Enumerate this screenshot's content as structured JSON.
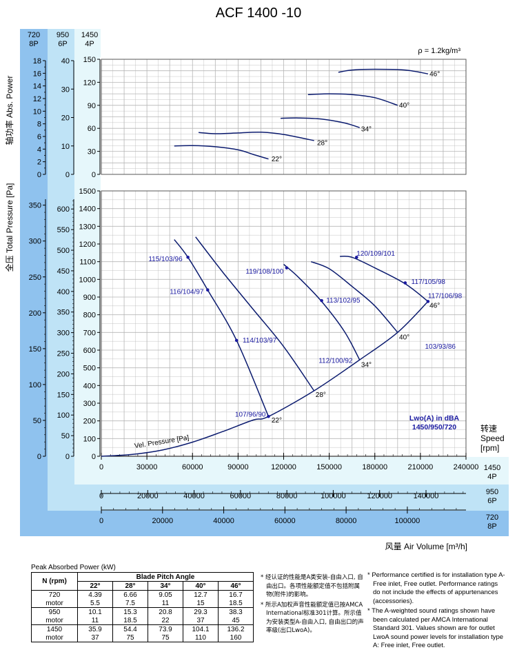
{
  "title": "ACF 1400 -10",
  "density_label": "ρ = 1.2kg/m³",
  "colors": {
    "band_dark": "#8fc2ee",
    "band_light": "#e6f7fb",
    "curve": "#0a1a6e",
    "grid": "#b5b5b5",
    "sound": "#1a1aa0"
  },
  "speed_headers": [
    {
      "rpm": "720",
      "pole": "8P"
    },
    {
      "rpm": "950",
      "pole": "6P"
    },
    {
      "rpm": "1450",
      "pole": "4P"
    }
  ],
  "labels": {
    "power_cn": "轴功率",
    "power_en": "Abs. Power",
    "pressure_cn": "全压",
    "pressure_en": "Total Pressure [Pa]",
    "speed_cn": "转速",
    "speed_en": "Speed",
    "speed_unit": "[rpm]",
    "airvol_cn": "风量",
    "airvol_en": "Air Volume [m³/h]",
    "vel_pressure": "Vel. Pressure [Pa]",
    "lwo_title": "Lwo(A) in dBA",
    "lwo_speeds": "1450/950/720"
  },
  "chart_data": {
    "type": "line",
    "title": "ACF 1400 -10",
    "power_axes": {
      "rpm1450": {
        "ylim": [
          0,
          150
        ],
        "ticks": [
          0,
          30,
          60,
          90,
          120,
          150
        ]
      },
      "rpm950": {
        "ylim": [
          0,
          40
        ],
        "ticks": [
          0,
          10,
          20,
          30,
          40
        ]
      },
      "rpm720": {
        "ylim": [
          0,
          18
        ],
        "ticks": [
          0,
          2,
          4,
          6,
          8,
          10,
          12,
          14,
          16,
          18
        ]
      }
    },
    "pressure_axes": {
      "rpm1450": {
        "ylim": [
          0,
          1500
        ],
        "ticks": [
          0,
          100,
          200,
          300,
          400,
          500,
          600,
          700,
          800,
          900,
          1000,
          1100,
          1200,
          1300,
          1400,
          1500
        ]
      },
      "rpm950": {
        "ylim": [
          0,
          650
        ],
        "ticks": [
          0,
          50,
          100,
          150,
          200,
          250,
          300,
          350,
          400,
          450,
          500,
          550,
          600
        ]
      },
      "rpm720": {
        "ylim": [
          0,
          375
        ],
        "ticks": [
          0,
          50,
          100,
          150,
          200,
          250,
          300,
          350
        ]
      }
    },
    "xaxes": {
      "rpm1450": {
        "xlim": [
          0,
          240000
        ],
        "ticks": [
          0,
          30000,
          60000,
          90000,
          120000,
          150000,
          180000,
          210000,
          240000
        ],
        "label": "1450",
        "pole": "4P"
      },
      "rpm950": {
        "xlim": [
          0,
          160000
        ],
        "ticks": [
          0,
          20000,
          40000,
          60000,
          80000,
          100000,
          120000,
          140000
        ],
        "label": "950",
        "pole": "6P"
      },
      "rpm720": {
        "xlim": [
          0,
          120000
        ],
        "ticks": [
          0,
          20000,
          40000,
          60000,
          80000,
          100000
        ],
        "label": "720",
        "pole": "8P"
      }
    },
    "pressure_curves": [
      {
        "name": "22°",
        "x": [
          48000,
          57000,
          70000,
          89000,
          110000
        ],
        "y": [
          1225,
          1125,
          940,
          655,
          225
        ],
        "label_xy": [
          112000,
          190
        ]
      },
      {
        "name": "28°",
        "x": [
          62000,
          80000,
          100000,
          120000,
          140000
        ],
        "y": [
          1240,
          1040,
          830,
          620,
          370
        ],
        "label_xy": [
          141000,
          335
        ]
      },
      {
        "name": "34°",
        "x": [
          120000,
          130000,
          145000,
          160000,
          170000
        ],
        "y": [
          1085,
          1010,
          875,
          705,
          545
        ],
        "label_xy": [
          171000,
          505
        ]
      },
      {
        "name": "40°",
        "x": [
          138000,
          150000,
          165000,
          180000,
          195000
        ],
        "y": [
          1100,
          1060,
          960,
          850,
          700
        ],
        "label_xy": [
          196000,
          660
        ]
      },
      {
        "name": "46°",
        "x": [
          157000,
          165000,
          180000,
          200000,
          215000
        ],
        "y": [
          1130,
          1125,
          1065,
          975,
          875
        ],
        "label_xy": [
          216000,
          840
        ]
      }
    ],
    "system_curve": {
      "name": "Vel. Pressure [Pa]",
      "x": [
        0,
        20000,
        40000,
        60000,
        80000,
        100000,
        110000,
        140000,
        170000,
        195000,
        215000
      ],
      "y": [
        0,
        10,
        35,
        80,
        140,
        205,
        225,
        370,
        545,
        700,
        875
      ]
    },
    "sound_points": [
      {
        "label": "115/103/96",
        "x": 57000,
        "y": 1125,
        "label_xy": [
          31000,
          1115
        ],
        "point": true
      },
      {
        "label": "116/104/97",
        "x": 70000,
        "y": 940,
        "label_xy": [
          45000,
          930
        ],
        "point": true
      },
      {
        "label": "114/103/97",
        "x": 89000,
        "y": 655,
        "label_xy": [
          93000,
          655
        ],
        "point": true
      },
      {
        "label": "107/96/90",
        "x": 110000,
        "y": 225,
        "label_xy": [
          88000,
          235
        ],
        "point": true
      },
      {
        "label": "119/108/100",
        "x": 122000,
        "y": 1065,
        "label_xy": [
          95000,
          1045
        ],
        "point": true
      },
      {
        "label": "113/102/95",
        "x": 145000,
        "y": 880,
        "label_xy": [
          148000,
          880
        ],
        "point": true
      },
      {
        "label": "112/100/92",
        "x": 170000,
        "y": 545,
        "label_xy": [
          143000,
          540
        ],
        "point": false
      },
      {
        "label": "120/109/101",
        "x": 168000,
        "y": 1125,
        "label_xy": [
          168000,
          1145
        ],
        "point": true
      },
      {
        "label": "117/105/98",
        "x": 200000,
        "y": 980,
        "label_xy": [
          204000,
          985
        ],
        "point": true
      },
      {
        "label": "117/106/98",
        "x": 215000,
        "y": 875,
        "label_xy": [
          215000,
          905
        ],
        "point": true
      },
      {
        "label": "103/93/86",
        "x": 210000,
        "y": 620,
        "label_xy": [
          213000,
          620
        ],
        "point": false
      }
    ],
    "power_curves": [
      {
        "name": "22°",
        "x": [
          48000,
          60000,
          75000,
          90000,
          100000,
          110000
        ],
        "y": [
          37,
          37.5,
          36,
          32,
          26,
          20
        ],
        "label_xy": [
          112000,
          17
        ]
      },
      {
        "name": "28°",
        "x": [
          64000,
          75000,
          90000,
          105000,
          120000,
          140000
        ],
        "y": [
          54.5,
          53,
          54,
          55,
          52,
          44
        ],
        "label_xy": [
          142000,
          38
        ]
      },
      {
        "name": "34°",
        "x": [
          118000,
          130000,
          145000,
          160000,
          170000
        ],
        "y": [
          73,
          73.5,
          72,
          67,
          61
        ],
        "label_xy": [
          171000,
          56
        ]
      },
      {
        "name": "40°",
        "x": [
          136000,
          150000,
          165000,
          180000,
          195000
        ],
        "y": [
          104,
          105,
          104,
          100,
          90
        ],
        "label_xy": [
          196000,
          87
        ]
      },
      {
        "name": "46°",
        "x": [
          156000,
          165000,
          180000,
          200000,
          215000
        ],
        "y": [
          133,
          136,
          137,
          136,
          131
        ],
        "label_xy": [
          216000,
          128
        ]
      }
    ]
  },
  "table": {
    "caption": "Peak Absorbed Power (kW)",
    "col_header_rpm": "N (rpm)",
    "col_header_group": "Blade Pitch Angle",
    "angles": [
      "22°",
      "28°",
      "34°",
      "40°",
      "46°"
    ],
    "rows": [
      {
        "rpm": "720",
        "values": [
          "4.39",
          "6.66",
          "9.05",
          "12.7",
          "16.7"
        ],
        "motor_label": "motor",
        "motor": [
          "5.5",
          "7.5",
          "11",
          "15",
          "18.5"
        ]
      },
      {
        "rpm": "950",
        "values": [
          "10.1",
          "15.3",
          "20.8",
          "29.3",
          "38.3"
        ],
        "motor_label": "motor",
        "motor": [
          "11",
          "18.5",
          "22",
          "37",
          "45"
        ]
      },
      {
        "rpm": "1450",
        "values": [
          "35.9",
          "54.4",
          "73.9",
          "104.1",
          "136.2"
        ],
        "motor_label": "motor",
        "motor": [
          "37",
          "75",
          "75",
          "110",
          "160"
        ]
      }
    ]
  },
  "notes_cn": [
    "* 经认证的性能是A类安装-自由入口, 自由出口。各项性能额定值不包括附属物(附件)的影响。",
    "* 所示A加权声音性能额定值已按AMCA International标准301计算。所示值为安装类型A-自由入口, 自由出口的声率级(出口LwoA)。"
  ],
  "notes_en": [
    "* Performance certified is for installation type A-Free inlet, Free outlet. Performance ratings do not include the effects of appurtenances (accessories).",
    "* The A-weighted sound ratings shown have been calculated per AMCA International Standard 301. Values shown are for outlet LwoA sound power levels for installation type A: Free inlet, Free outlet."
  ]
}
